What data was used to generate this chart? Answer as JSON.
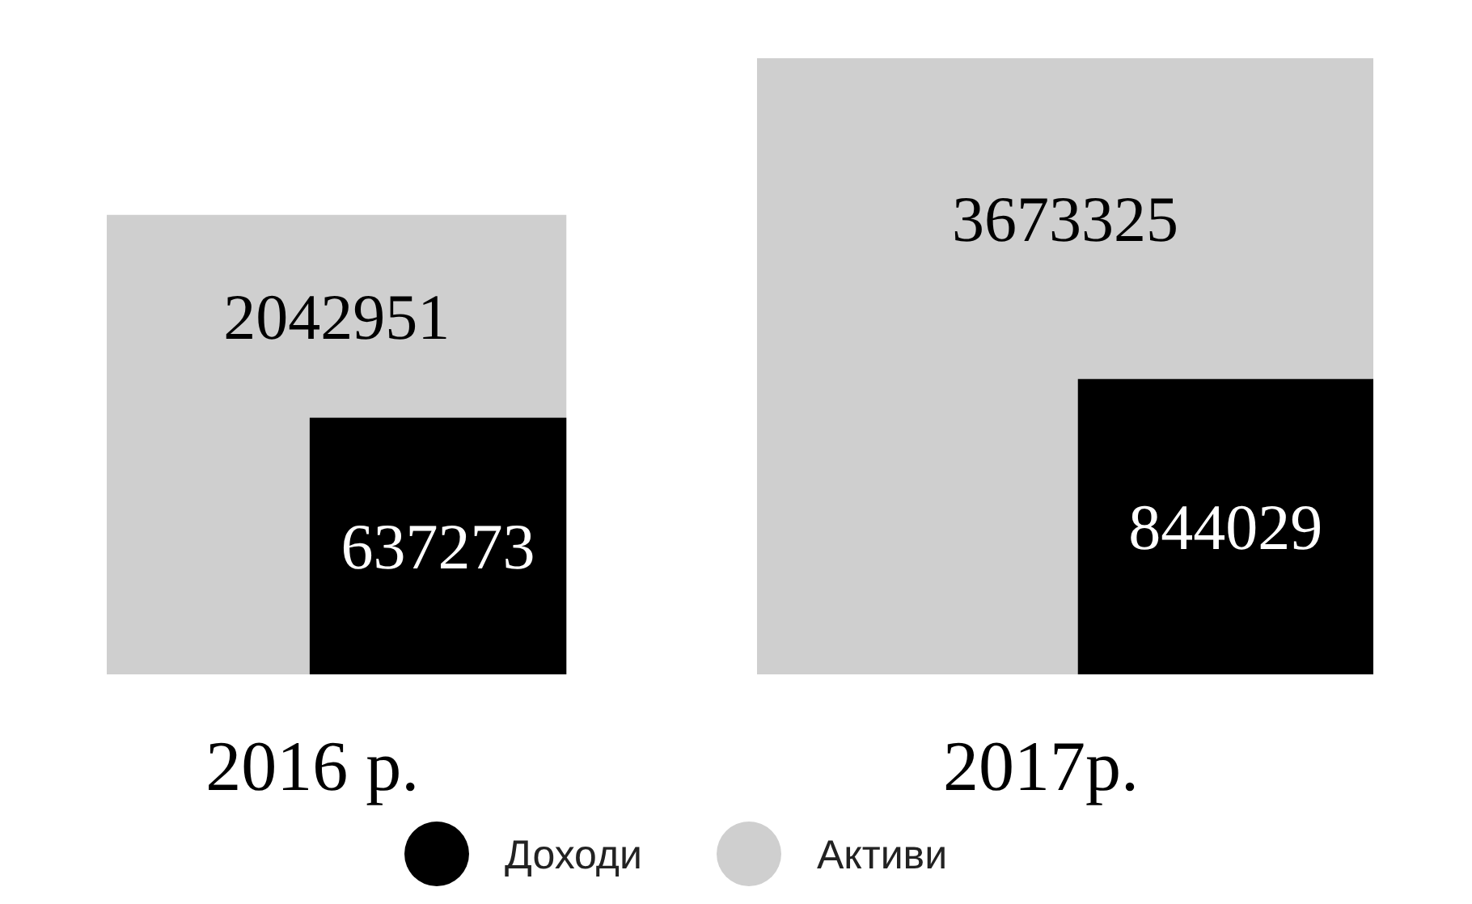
{
  "chart_data": {
    "type": "other",
    "categories": [
      "2016 р.",
      "2017р."
    ],
    "series": [
      {
        "name": "Доходи",
        "color": "#000000",
        "values": [
          637273,
          844029
        ]
      },
      {
        "name": "Активи",
        "color": "#cfcfcf",
        "values": [
          2042951,
          3673325
        ]
      }
    ],
    "data_labels": true,
    "legend": "bottom"
  }
}
